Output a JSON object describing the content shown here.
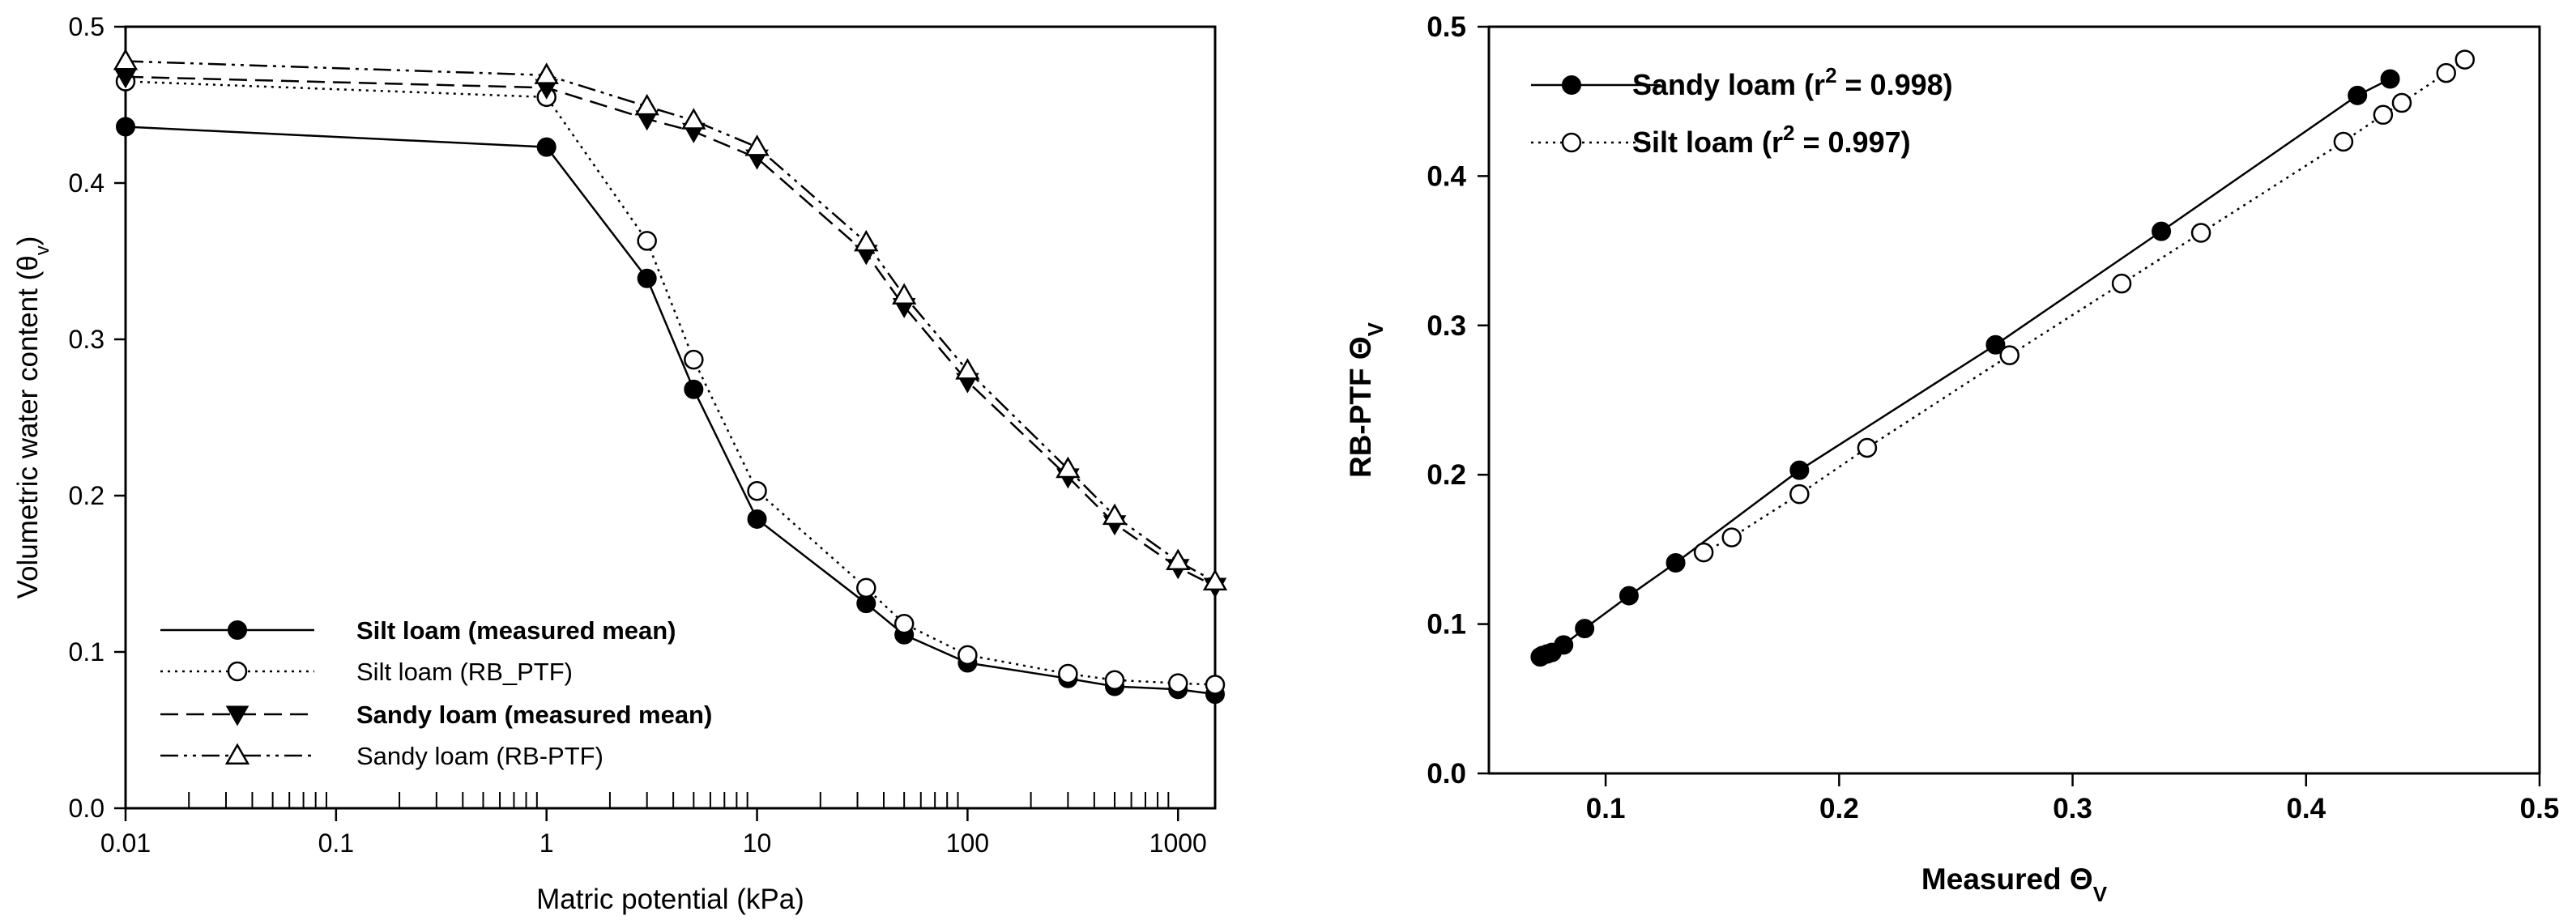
{
  "chart_data": [
    {
      "type": "line",
      "xscale": "log",
      "xlabel": "Matric potential (kPa)",
      "ylabel_main": "Volumetric water content (θ",
      "ylabel_sub": "v",
      "ylabel_close": ")",
      "xlim": [
        0.01,
        1500
      ],
      "ylim": [
        0.0,
        0.5
      ],
      "xticks": [
        {
          "value": 0.01,
          "label": "0.01"
        },
        {
          "value": 0.1,
          "label": "0.1"
        },
        {
          "value": 1,
          "label": "1"
        },
        {
          "value": 10,
          "label": "10"
        },
        {
          "value": 100,
          "label": "100"
        },
        {
          "value": 1000,
          "label": "1000"
        }
      ],
      "yticks": [
        {
          "value": 0.0,
          "label": "0.0"
        },
        {
          "value": 0.1,
          "label": "0.1"
        },
        {
          "value": 0.2,
          "label": "0.2"
        },
        {
          "value": 0.3,
          "label": "0.3"
        },
        {
          "value": 0.4,
          "label": "0.4"
        },
        {
          "value": 0.5,
          "label": "0.5"
        }
      ],
      "legend_position": "bottom-left",
      "series": [
        {
          "name": "Silt loam (measured mean)",
          "marker": "filled-circle",
          "line": "solid",
          "x": [
            0.01,
            1,
            3,
            5,
            10,
            33,
            50,
            100,
            300,
            500,
            1000,
            1500
          ],
          "y": [
            0.436,
            0.423,
            0.339,
            0.268,
            0.185,
            0.131,
            0.111,
            0.093,
            0.083,
            0.078,
            0.076,
            0.073
          ]
        },
        {
          "name": "Silt loam (RB_PTF)",
          "marker": "open-circle",
          "line": "dotted",
          "x": [
            0.01,
            1,
            3,
            5,
            10,
            33,
            50,
            100,
            300,
            500,
            1000,
            1500
          ],
          "y": [
            0.465,
            0.455,
            0.363,
            0.287,
            0.203,
            0.141,
            0.118,
            0.098,
            0.086,
            0.082,
            0.08,
            0.079
          ]
        },
        {
          "name": "Sandy loam (measured mean)",
          "marker": "filled-triangle-down",
          "line": "dashed",
          "x": [
            0.01,
            1,
            3,
            5,
            10,
            33,
            50,
            100,
            300,
            500,
            1000,
            1500
          ],
          "y": [
            0.468,
            0.461,
            0.441,
            0.433,
            0.416,
            0.355,
            0.321,
            0.273,
            0.212,
            0.182,
            0.154,
            0.142
          ]
        },
        {
          "name": "Sandy loam (RB-PTF)",
          "marker": "open-triangle-up",
          "line": "dash-dot-dot",
          "x": [
            0.01,
            1,
            3,
            5,
            10,
            33,
            50,
            100,
            300,
            500,
            1000,
            1500
          ],
          "y": [
            0.478,
            0.469,
            0.449,
            0.44,
            0.423,
            0.362,
            0.328,
            0.28,
            0.217,
            0.187,
            0.158,
            0.145
          ]
        }
      ]
    },
    {
      "type": "scatter",
      "xlabel": "Measured Θ",
      "xlabel_sub": "V",
      "ylabel": "RB-PTF Θ",
      "ylabel_sub": "V",
      "xlim": [
        0.05,
        0.5
      ],
      "ylim": [
        0.0,
        0.5
      ],
      "xticks": [
        {
          "value": 0.1,
          "label": "0.1"
        },
        {
          "value": 0.2,
          "label": "0.2"
        },
        {
          "value": 0.3,
          "label": "0.3"
        },
        {
          "value": 0.4,
          "label": "0.4"
        },
        {
          "value": 0.5,
          "label": "0.5"
        }
      ],
      "yticks": [
        {
          "value": 0.0,
          "label": "0.0"
        },
        {
          "value": 0.1,
          "label": "0.1"
        },
        {
          "value": 0.2,
          "label": "0.2"
        },
        {
          "value": 0.3,
          "label": "0.3"
        },
        {
          "value": 0.4,
          "label": "0.4"
        },
        {
          "value": 0.5,
          "label": "0.5"
        }
      ],
      "legend_position": "top-left",
      "series": [
        {
          "name": "Sandy loam (r",
          "name_sup": "2",
          "name_end": " = 0.998)",
          "marker": "filled-circle",
          "line": "solid",
          "x": [
            0.072,
            0.073,
            0.075,
            0.077,
            0.082,
            0.091,
            0.11,
            0.13,
            0.183,
            0.267,
            0.338,
            0.422,
            0.436
          ],
          "y": [
            0.078,
            0.079,
            0.08,
            0.081,
            0.086,
            0.097,
            0.119,
            0.141,
            0.203,
            0.287,
            0.363,
            0.454,
            0.465
          ]
        },
        {
          "name": "Silt loam (r",
          "name_sup": "2",
          "name_end": " = 0.997)",
          "marker": "open-circle",
          "line": "dotted",
          "x": [
            0.142,
            0.154,
            0.183,
            0.212,
            0.273,
            0.321,
            0.355,
            0.416,
            0.433,
            0.441,
            0.46,
            0.468
          ],
          "y": [
            0.148,
            0.158,
            0.187,
            0.218,
            0.28,
            0.328,
            0.362,
            0.423,
            0.441,
            0.449,
            0.469,
            0.478
          ]
        }
      ]
    }
  ]
}
